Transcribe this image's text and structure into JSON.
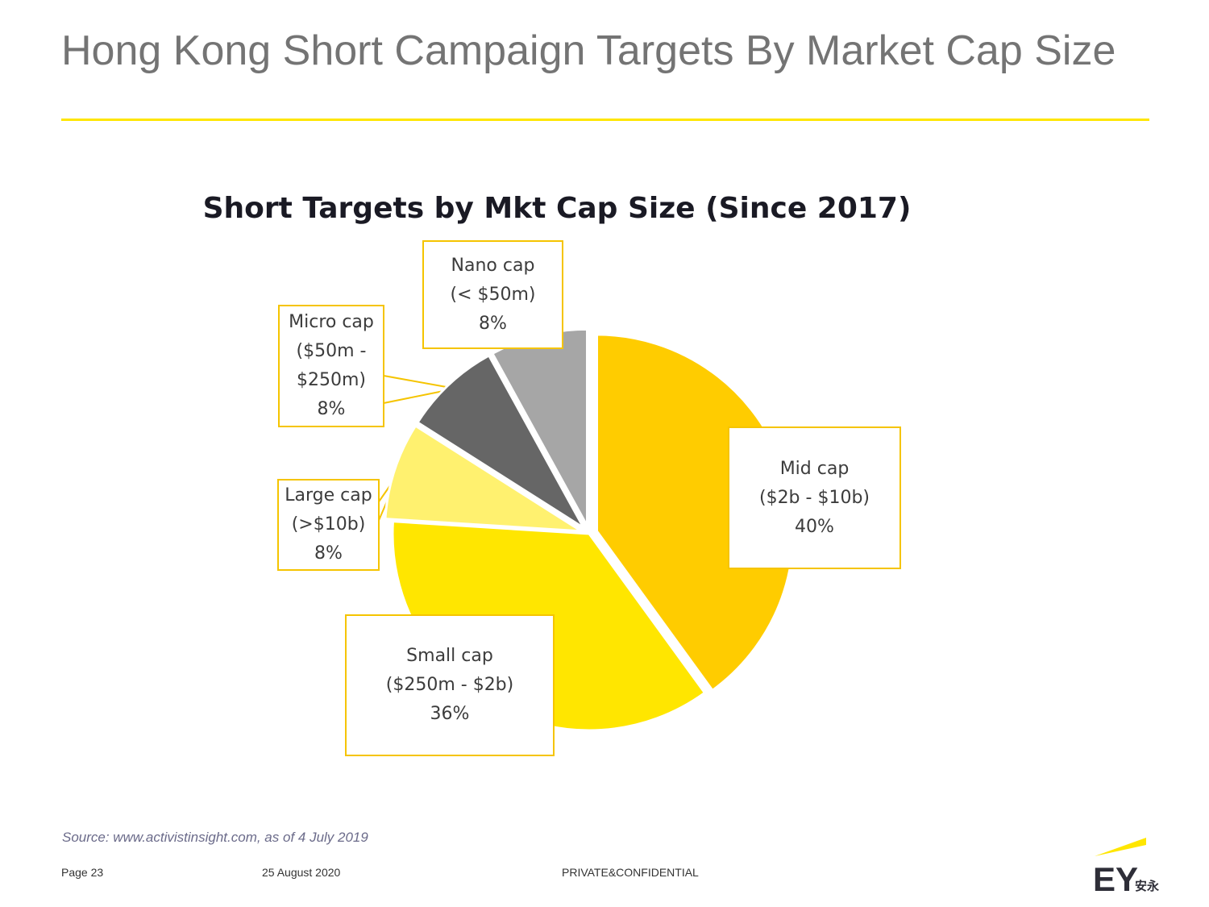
{
  "slide": {
    "title": "Hong Kong Short Campaign Targets By Market Cap Size"
  },
  "chart_data": {
    "type": "pie",
    "title": "Short Targets by Mkt Cap Size (Since 2017)",
    "slices": [
      {
        "name": "Mid cap",
        "range": "($2b - $10b)",
        "pct_label": "40%",
        "value": 40,
        "color": "#ffcc00",
        "exploded": true
      },
      {
        "name": "Small cap",
        "range": "($250m - $2b)",
        "pct_label": "36%",
        "value": 36,
        "color": "#ffe600",
        "exploded": false
      },
      {
        "name": "Large cap",
        "range": "(>$10b)",
        "pct_label": "8%",
        "value": 8,
        "color": "#fff16f",
        "exploded": true
      },
      {
        "name": "Micro cap",
        "range": "($50m - $250m)",
        "range_lines": [
          "($50m -",
          "$250m)"
        ],
        "pct_label": "8%",
        "value": 8,
        "color": "#666666",
        "exploded": true
      },
      {
        "name": "Nano cap",
        "range": "(< $50m)",
        "pct_label": "8%",
        "value": 8,
        "color": "#a6a6a6",
        "exploded": true
      }
    ]
  },
  "footer": {
    "source": "Source:  www.activistinsight.com, as of 4 July 2019",
    "page": "Page 23",
    "date": "25 August 2020",
    "classification": "PRIVATE&CONFIDENTIAL"
  },
  "logo": {
    "text": "EY",
    "chinese": "安永",
    "icon": "ey-logo-icon"
  }
}
